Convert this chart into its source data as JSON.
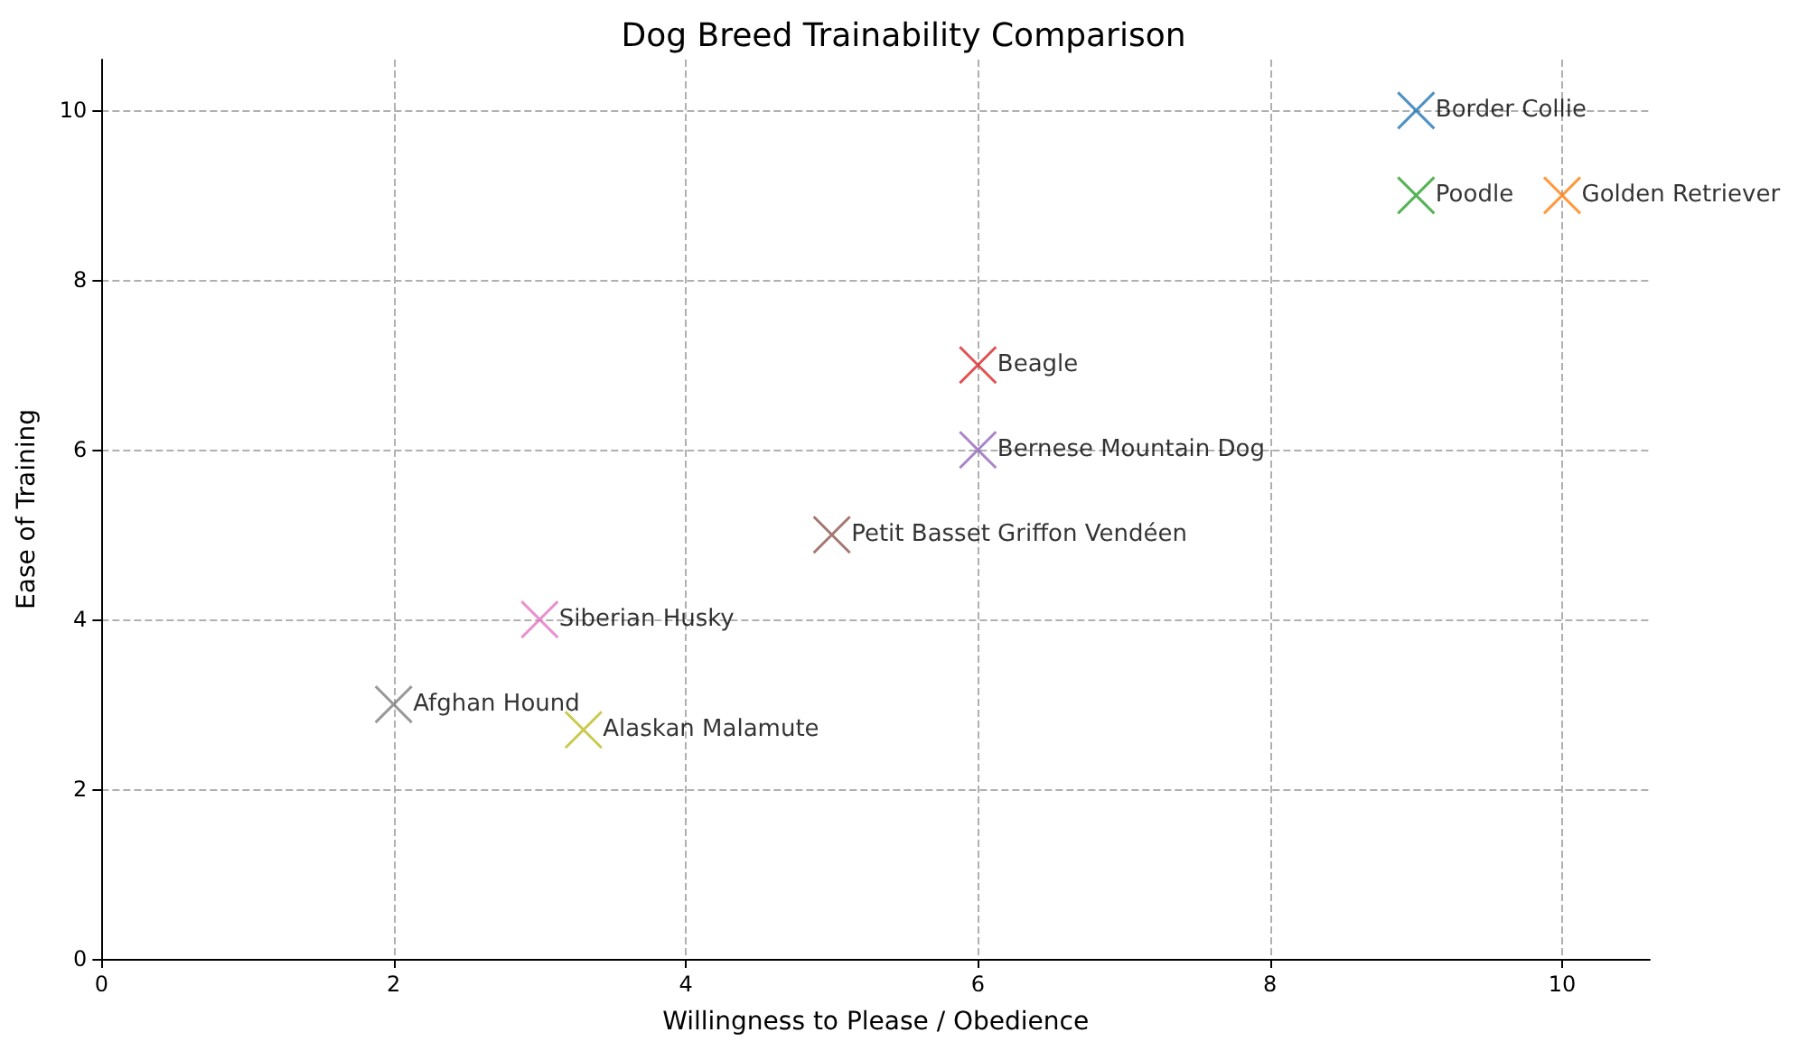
{
  "chart_data": {
    "type": "scatter",
    "title": "Dog Breed Trainability Comparison",
    "xlabel": "Willingness to Please / Obedience",
    "ylabel": "Ease of Training",
    "xlim": [
      0,
      10.6
    ],
    "ylim": [
      0,
      10.6
    ],
    "xticks": [
      0,
      2,
      4,
      6,
      8,
      10
    ],
    "yticks": [
      0,
      2,
      4,
      6,
      8,
      10
    ],
    "grid": true,
    "legend": false,
    "marker": "cross",
    "series": [
      {
        "name": "Border Collie",
        "color": "#1f77b4",
        "x": [
          9
        ],
        "values": [
          10
        ]
      },
      {
        "name": "Golden Retriever",
        "color": "#ff7f0e",
        "x": [
          10
        ],
        "values": [
          9
        ]
      },
      {
        "name": "Poodle",
        "color": "#2ca02c",
        "x": [
          9
        ],
        "values": [
          9
        ]
      },
      {
        "name": "Beagle",
        "color": "#d62728",
        "x": [
          6
        ],
        "values": [
          7
        ]
      },
      {
        "name": "Bernese Mountain Dog",
        "color": "#9467bd",
        "x": [
          6
        ],
        "values": [
          6
        ]
      },
      {
        "name": "Petit Basset Griffon Vendéen",
        "color": "#8c564b",
        "x": [
          5
        ],
        "values": [
          5
        ]
      },
      {
        "name": "Siberian Husky",
        "color": "#e377c2",
        "x": [
          3
        ],
        "values": [
          4
        ]
      },
      {
        "name": "Afghan Hound",
        "color": "#7f7f7f",
        "x": [
          2
        ],
        "values": [
          3
        ]
      },
      {
        "name": "Alaskan Malamute",
        "color": "#bcbd22",
        "x": [
          3.3
        ],
        "values": [
          2.7
        ]
      }
    ]
  }
}
